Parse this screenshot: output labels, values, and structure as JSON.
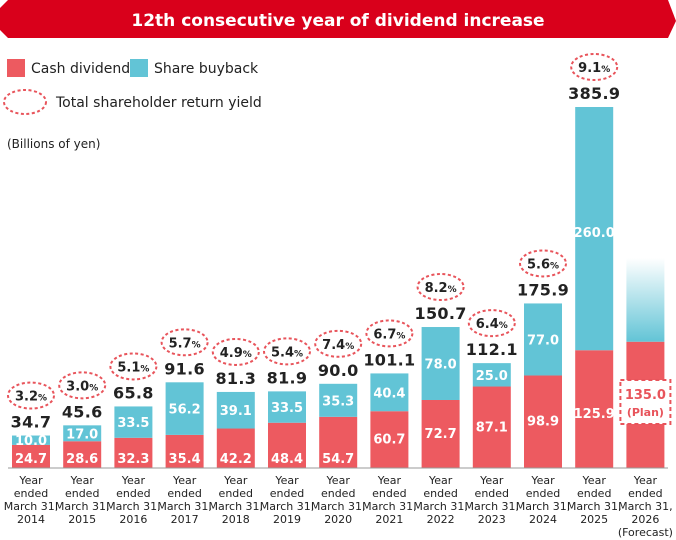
{
  "banner": {
    "title": "12th consecutive year of dividend increase"
  },
  "colors": {
    "cash": "#ed5a60",
    "buyback": "#62c4d6",
    "banner": "#d9001b",
    "yield_ring": "#e8545b"
  },
  "legend": {
    "cash_label": "Cash dividend",
    "buyback_label": "Share buyback",
    "yield_label": "Total shareholder return yield"
  },
  "unit_label": "(Billions of yen)",
  "chart_data": {
    "type": "bar",
    "stacked": true,
    "categories": [
      [
        "Year",
        "ended",
        "March 31,",
        "2014"
      ],
      [
        "Year",
        "ended",
        "March 31,",
        "2015"
      ],
      [
        "Year",
        "ended",
        "March 31,",
        "2016"
      ],
      [
        "Year",
        "ended",
        "March 31,",
        "2017"
      ],
      [
        "Year",
        "ended",
        "March 31,",
        "2018"
      ],
      [
        "Year",
        "ended",
        "March 31,",
        "2019"
      ],
      [
        "Year",
        "ended",
        "March 31,",
        "2020"
      ],
      [
        "Year",
        "ended",
        "March 31,",
        "2021"
      ],
      [
        "Year",
        "ended",
        "March 31,",
        "2022"
      ],
      [
        "Year",
        "ended",
        "March 31,",
        "2023"
      ],
      [
        "Year",
        "ended",
        "March 31,",
        "2024"
      ],
      [
        "Year",
        "ended",
        "March 31,",
        "2025"
      ],
      [
        "Year",
        "ended",
        "March 31,",
        "2026",
        "(Forecast)"
      ]
    ],
    "series": [
      {
        "name": "Cash dividend",
        "values": [
          24.7,
          28.6,
          32.3,
          35.4,
          42.2,
          48.4,
          54.7,
          60.7,
          72.7,
          87.1,
          98.9,
          125.9,
          135.0
        ]
      },
      {
        "name": "Share buyback",
        "values": [
          10.0,
          17.0,
          33.5,
          56.2,
          39.1,
          33.5,
          35.3,
          40.4,
          78.0,
          25.0,
          77.0,
          260.0,
          null
        ]
      }
    ],
    "totals": [
      "34.7",
      "45.6",
      "65.8",
      "91.6",
      "81.3",
      "81.9",
      "90.0",
      "101.1",
      "150.7",
      "112.1",
      "175.9",
      "385.9",
      null
    ],
    "segment_labels": {
      "cash": [
        "24.7",
        "28.6",
        "32.3",
        "35.4",
        "42.2",
        "48.4",
        "54.7",
        "60.7",
        "72.7",
        "87.1",
        "98.9",
        "125.9",
        null
      ],
      "buyback": [
        "10.0",
        "17.0",
        "33.5",
        "56.2",
        "39.1",
        "33.5",
        "35.3",
        "40.4",
        "78.0",
        "25.0",
        "77.0",
        "260.0",
        null
      ]
    },
    "yield_values": [
      "3.2",
      "3.0",
      "5.1",
      "5.7",
      "4.9",
      "5.4",
      "7.4",
      "6.7",
      "8.2",
      "6.4",
      "5.6",
      "9.1",
      null
    ],
    "yield_unit": "%",
    "forecast": {
      "value_label": "135.0",
      "note": "(Plan)"
    },
    "ylim": [
      0,
      385.9
    ]
  }
}
